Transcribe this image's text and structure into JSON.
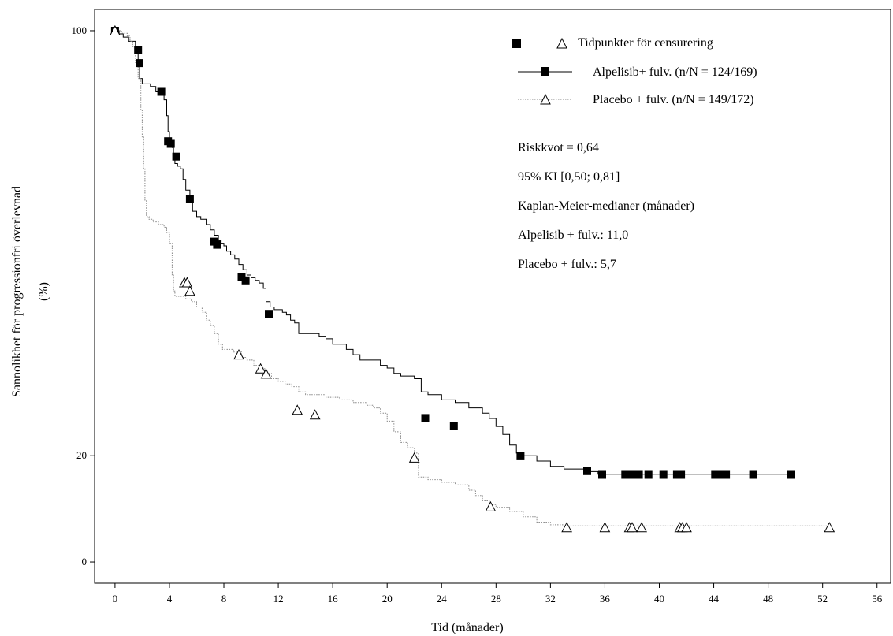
{
  "chart_data": {
    "type": "line",
    "xlabel": "Tid (månader)",
    "ylabel_line1": "Sannolikhet för progressionfri överlevnad",
    "ylabel_line2": "(%)",
    "xlim": [
      -1.5,
      57
    ],
    "ylim": [
      -4,
      104
    ],
    "xticks": [
      0,
      4,
      8,
      12,
      16,
      20,
      24,
      28,
      32,
      36,
      40,
      44,
      48,
      52,
      56
    ],
    "yticks": [
      0,
      20,
      100
    ],
    "legend": {
      "censor_label": "Tidpunkter för censurering",
      "entries": [
        "Alpelisib+ fulv. (n/N = 124/169)",
        "Placebo + fulv. (n/N = 149/172)"
      ]
    },
    "annotations": [
      "Riskkvot = 0,64",
      "95% KI [0,50; 0,81]",
      "Kaplan-Meier-medianer (månader)",
      "Alpelisib + fulv.: 11,0",
      "Placebo + fulv.: 5,7"
    ],
    "series": [
      {
        "name": "Alpelisib+ fulv. (n/N = 124/169)",
        "color": "#000000",
        "dash": "solid",
        "marker": "square",
        "steps": [
          [
            0,
            100
          ],
          [
            0.3,
            99.4
          ],
          [
            0.6,
            98.8
          ],
          [
            1.0,
            98
          ],
          [
            1.5,
            96.5
          ],
          [
            1.7,
            94
          ],
          [
            1.8,
            91
          ],
          [
            2.0,
            90
          ],
          [
            2.3,
            90
          ],
          [
            2.6,
            89.5
          ],
          [
            3.0,
            88.5
          ],
          [
            3.3,
            88
          ],
          [
            3.6,
            87
          ],
          [
            3.8,
            84
          ],
          [
            3.9,
            81
          ],
          [
            4.0,
            79
          ],
          [
            4.2,
            78
          ],
          [
            4.3,
            76
          ],
          [
            4.4,
            75
          ],
          [
            4.6,
            74.5
          ],
          [
            4.8,
            74
          ],
          [
            5.0,
            72
          ],
          [
            5.2,
            70
          ],
          [
            5.5,
            68
          ],
          [
            5.7,
            66
          ],
          [
            6.0,
            65
          ],
          [
            6.3,
            64.5
          ],
          [
            6.7,
            63.5
          ],
          [
            7.0,
            62.5
          ],
          [
            7.3,
            61.5
          ],
          [
            7.6,
            60.5
          ],
          [
            7.8,
            60
          ],
          [
            8.0,
            59.5
          ],
          [
            8.2,
            58.5
          ],
          [
            8.5,
            57.8
          ],
          [
            8.8,
            57
          ],
          [
            9.1,
            56
          ],
          [
            9.4,
            55
          ],
          [
            9.7,
            54
          ],
          [
            10.0,
            53.5
          ],
          [
            10.3,
            53
          ],
          [
            10.6,
            52.5
          ],
          [
            10.9,
            51.5
          ],
          [
            11.1,
            49
          ],
          [
            11.4,
            48
          ],
          [
            11.7,
            47.5
          ],
          [
            12.0,
            47.5
          ],
          [
            12.3,
            47
          ],
          [
            12.6,
            46.5
          ],
          [
            12.9,
            45.5
          ],
          [
            13.2,
            45
          ],
          [
            13.5,
            43
          ],
          [
            14.0,
            43
          ],
          [
            14.5,
            43
          ],
          [
            15.0,
            42.5
          ],
          [
            15.5,
            42
          ],
          [
            16.0,
            41
          ],
          [
            16.5,
            41
          ],
          [
            17.0,
            40
          ],
          [
            17.5,
            39
          ],
          [
            18.0,
            38
          ],
          [
            19.0,
            38
          ],
          [
            19.5,
            37
          ],
          [
            20.0,
            36.5
          ],
          [
            20.5,
            35.5
          ],
          [
            21.0,
            35
          ],
          [
            22.0,
            34.5
          ],
          [
            22.5,
            32
          ],
          [
            23.0,
            31.5
          ],
          [
            24.0,
            30.5
          ],
          [
            25.0,
            30
          ],
          [
            26.0,
            29
          ],
          [
            27.0,
            28
          ],
          [
            27.5,
            27
          ],
          [
            28.0,
            25.5
          ],
          [
            28.5,
            24
          ],
          [
            29.0,
            22
          ],
          [
            29.5,
            20.5
          ],
          [
            30.0,
            20
          ],
          [
            31.0,
            19
          ],
          [
            32.0,
            18
          ],
          [
            33.0,
            17.5
          ],
          [
            34.0,
            17.5
          ],
          [
            34.8,
            17
          ],
          [
            35.5,
            16.5
          ],
          [
            49.7,
            16.5
          ]
        ],
        "censored": [
          [
            0,
            100
          ],
          [
            1.7,
            96.4
          ],
          [
            1.8,
            93.9
          ],
          [
            3.4,
            88.5
          ],
          [
            3.9,
            79.2
          ],
          [
            4.1,
            78.7
          ],
          [
            4.5,
            76.3
          ],
          [
            5.5,
            68.3
          ],
          [
            7.3,
            60.3
          ],
          [
            7.5,
            59.7
          ],
          [
            9.3,
            53.6
          ],
          [
            9.6,
            53.0
          ],
          [
            11.3,
            46.7
          ],
          [
            22.8,
            27.1
          ],
          [
            24.9,
            25.6
          ],
          [
            29.8,
            19.9
          ],
          [
            34.7,
            17.1
          ],
          [
            35.8,
            16.4
          ],
          [
            37.5,
            16.4
          ],
          [
            38.0,
            16.4
          ],
          [
            38.5,
            16.4
          ],
          [
            39.2,
            16.4
          ],
          [
            40.3,
            16.4
          ],
          [
            41.3,
            16.4
          ],
          [
            41.6,
            16.4
          ],
          [
            44.1,
            16.4
          ],
          [
            44.5,
            16.4
          ],
          [
            44.9,
            16.4
          ],
          [
            46.9,
            16.4
          ],
          [
            49.7,
            16.4
          ]
        ]
      },
      {
        "name": "Placebo + fulv. (n/N = 149/172)",
        "color": "#777777",
        "dash": "dotted",
        "marker": "triangle",
        "steps": [
          [
            0,
            100
          ],
          [
            0.5,
            99.5
          ],
          [
            0.9,
            99
          ],
          [
            1.1,
            98
          ],
          [
            1.3,
            97
          ],
          [
            1.5,
            94
          ],
          [
            1.7,
            91
          ],
          [
            1.9,
            85
          ],
          [
            2.0,
            80
          ],
          [
            2.1,
            74
          ],
          [
            2.2,
            68
          ],
          [
            2.3,
            65
          ],
          [
            2.5,
            64.5
          ],
          [
            2.8,
            64
          ],
          [
            3.2,
            63.5
          ],
          [
            3.5,
            63.5
          ],
          [
            3.6,
            63
          ],
          [
            3.8,
            62
          ],
          [
            4.0,
            60
          ],
          [
            4.2,
            54
          ],
          [
            4.3,
            51
          ],
          [
            4.4,
            50
          ],
          [
            4.8,
            50
          ],
          [
            5.2,
            49.5
          ],
          [
            5.6,
            49
          ],
          [
            6.0,
            48
          ],
          [
            6.4,
            47
          ],
          [
            6.7,
            45.5
          ],
          [
            7.0,
            44.5
          ],
          [
            7.3,
            43
          ],
          [
            7.6,
            41
          ],
          [
            7.9,
            40
          ],
          [
            8.3,
            40
          ],
          [
            8.7,
            39.5
          ],
          [
            9.0,
            39.5
          ],
          [
            9.3,
            38.5
          ],
          [
            9.7,
            38
          ],
          [
            10.2,
            37
          ],
          [
            10.7,
            36.5
          ],
          [
            11.0,
            35.5
          ],
          [
            11.5,
            34.5
          ],
          [
            12.0,
            34
          ],
          [
            12.5,
            33.5
          ],
          [
            13.0,
            33
          ],
          [
            13.5,
            32
          ],
          [
            14.0,
            31.5
          ],
          [
            14.8,
            31.5
          ],
          [
            15.5,
            31
          ],
          [
            16.5,
            30.5
          ],
          [
            17.5,
            30
          ],
          [
            18.5,
            29.5
          ],
          [
            19.0,
            29
          ],
          [
            19.5,
            28
          ],
          [
            20.0,
            26.5
          ],
          [
            20.5,
            24.5
          ],
          [
            21.0,
            22.5
          ],
          [
            21.5,
            21.5
          ],
          [
            22.0,
            20.5
          ],
          [
            22.3,
            16
          ],
          [
            23.0,
            15.5
          ],
          [
            24.0,
            15
          ],
          [
            25.0,
            14.5
          ],
          [
            26.0,
            13.5
          ],
          [
            26.5,
            12.5
          ],
          [
            27.0,
            11.5
          ],
          [
            27.5,
            10.8
          ],
          [
            28.0,
            10.3
          ],
          [
            29.0,
            9.5
          ],
          [
            30.0,
            8.5
          ],
          [
            31.0,
            7.5
          ],
          [
            32.0,
            7
          ],
          [
            33.0,
            6.8
          ],
          [
            52.5,
            6.8
          ]
        ],
        "censored": [
          [
            0,
            100
          ],
          [
            5.1,
            52.6
          ],
          [
            5.3,
            52.6
          ],
          [
            5.5,
            51.0
          ],
          [
            9.1,
            39.0
          ],
          [
            10.7,
            36.4
          ],
          [
            11.1,
            35.4
          ],
          [
            13.4,
            28.6
          ],
          [
            14.7,
            27.7
          ],
          [
            22.0,
            19.6
          ],
          [
            27.6,
            10.4
          ],
          [
            33.2,
            6.5
          ],
          [
            36.0,
            6.5
          ],
          [
            37.8,
            6.5
          ],
          [
            38.0,
            6.5
          ],
          [
            38.7,
            6.5
          ],
          [
            41.5,
            6.5
          ],
          [
            41.7,
            6.5
          ],
          [
            42.0,
            6.5
          ],
          [
            52.5,
            6.5
          ]
        ]
      }
    ]
  }
}
